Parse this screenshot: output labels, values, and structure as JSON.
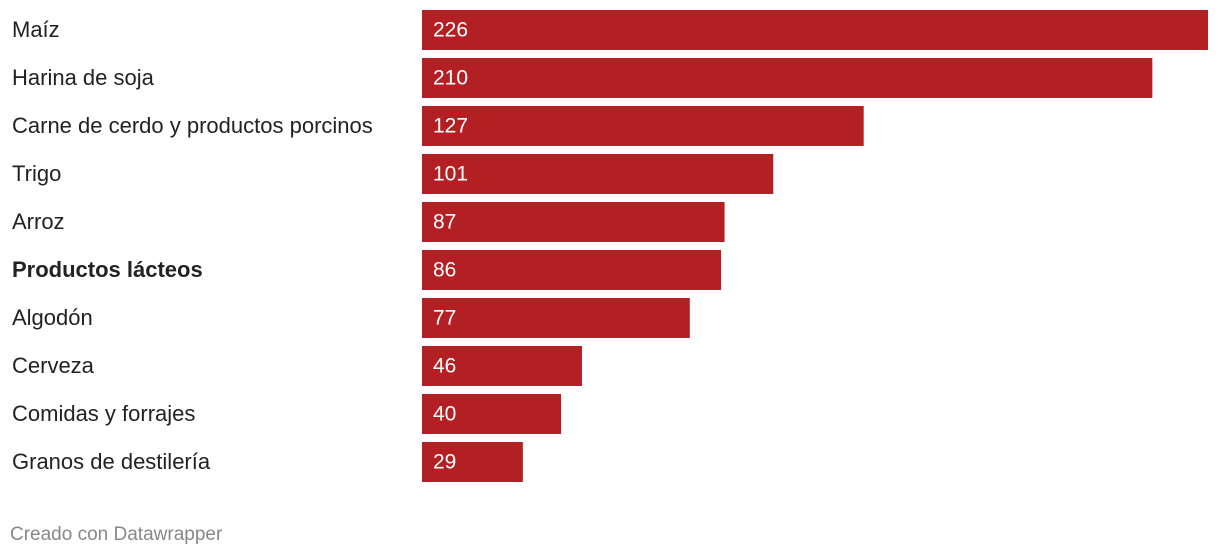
{
  "chart_data": {
    "type": "bar",
    "orientation": "horizontal",
    "categories": [
      "Maíz",
      "Harina de soja",
      "Carne de cerdo y productos porcinos",
      "Trigo",
      "Arroz",
      "Productos lácteos",
      "Algodón",
      "Cerveza",
      "Comidas y forrajes",
      "Granos de destilería"
    ],
    "values": [
      226,
      210,
      127,
      101,
      87,
      86,
      77,
      46,
      40,
      29
    ],
    "color": "#b22024",
    "highlight_index": 5,
    "value_labels_inside": true
  },
  "credit": "Creado con Datawrapper"
}
